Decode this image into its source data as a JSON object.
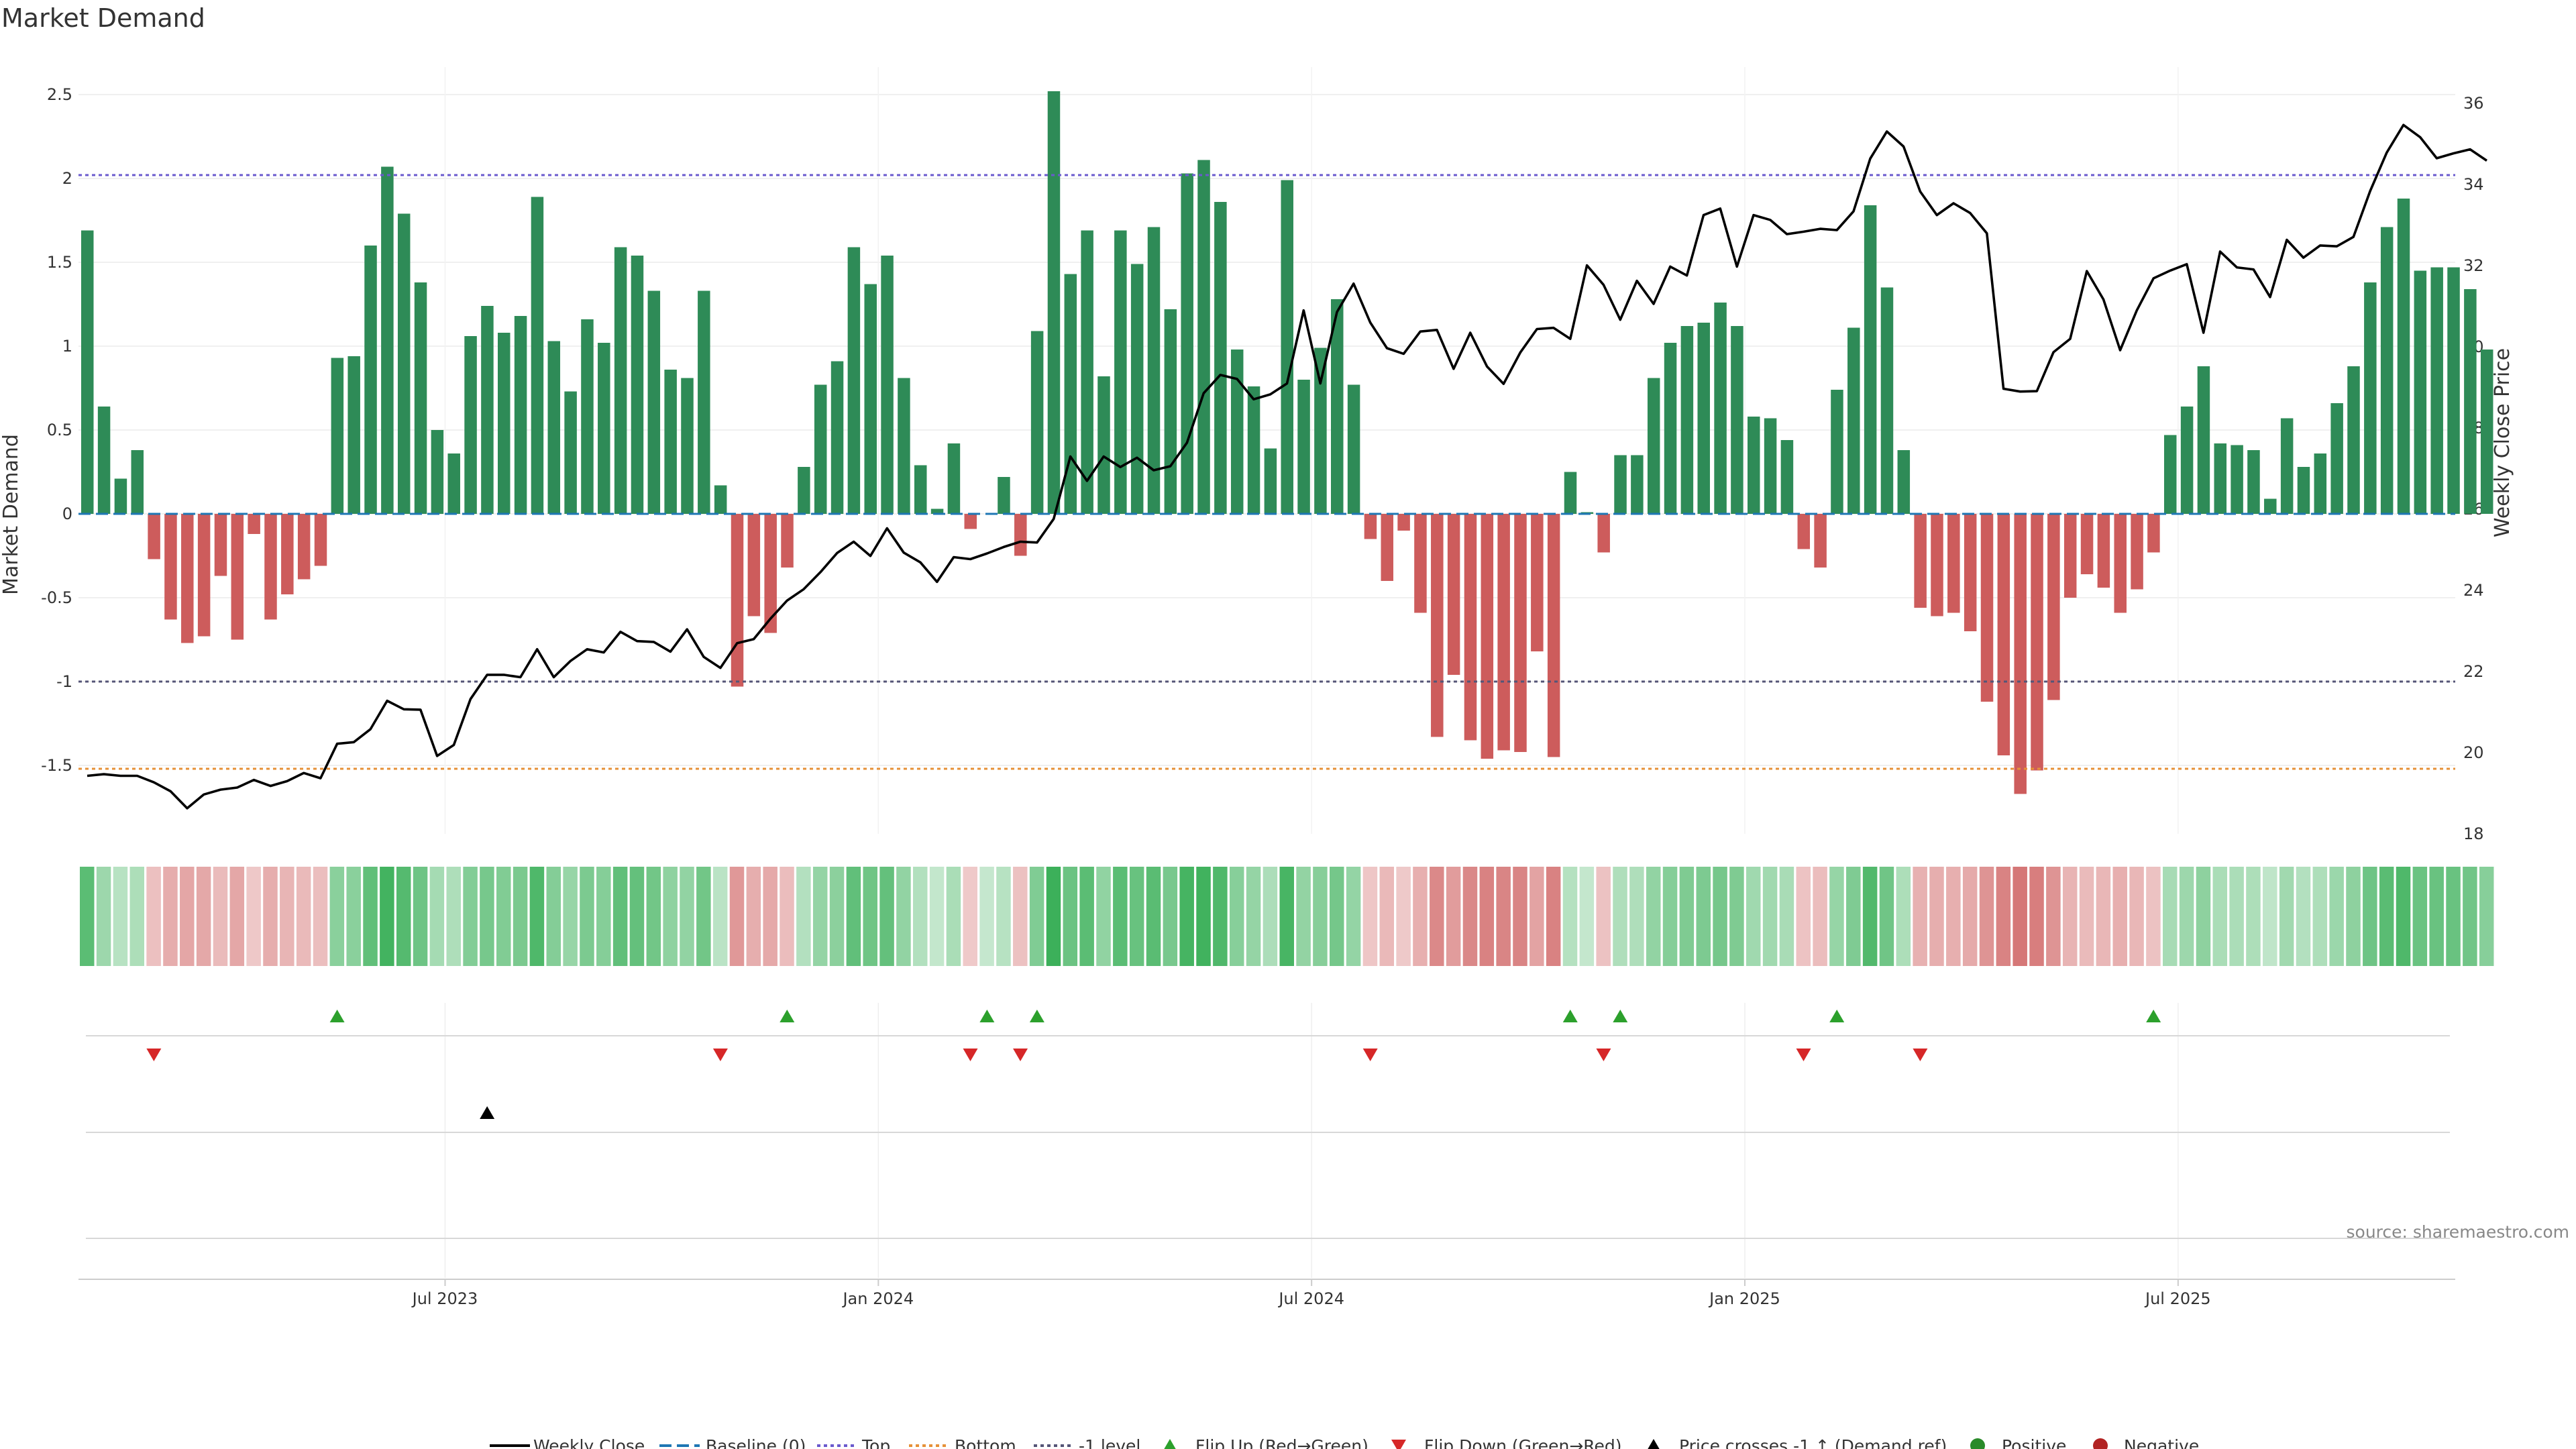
{
  "chart_data": {
    "type": "bar",
    "title": "Market Demand",
    "ylabel": "Market Demand",
    "y2label": "Weekly Close Price",
    "ylim": [
      -1.9,
      2.75
    ],
    "y2lim": [
      18,
      36.5
    ],
    "yticks": [
      "-1.5",
      "-1",
      "-0.5",
      "0",
      "0.5",
      "1",
      "1.5",
      "2",
      "2.5"
    ],
    "ytick_values": [
      -1.5,
      -1,
      -0.5,
      0,
      0.5,
      1,
      1.5,
      2,
      2.5
    ],
    "y2ticks": [
      "18",
      "20",
      "22",
      "24",
      "26",
      "28",
      "30",
      "32",
      "34",
      "36"
    ],
    "y2tick_values": [
      18,
      20,
      22,
      24,
      26,
      28,
      30,
      32,
      34,
      36
    ],
    "x_labels": [
      "Jul 2023",
      "Jan 2024",
      "Jul 2024",
      "Jan 2025",
      "Jul 2025"
    ],
    "x_label_weeks": [
      22,
      48,
      74,
      100,
      126
    ],
    "levels": {
      "baseline": 0,
      "top": 2.02,
      "bottom": -1.52,
      "minus_one": -1
    },
    "colors": {
      "positive": "#2e8b57",
      "negative": "#cd5c5c",
      "price": "#000000",
      "baseline": "#1f77b4",
      "top": "#6a5acd",
      "bottom": "#e69138",
      "minus_one": "#555577",
      "flip_up": "#2ca02c",
      "flip_down": "#d62728",
      "cross": "#000000"
    },
    "demand": [
      1.69,
      0.64,
      0.21,
      0.38,
      -0.27,
      -0.63,
      -0.77,
      -0.73,
      -0.37,
      -0.75,
      -0.12,
      -0.63,
      -0.48,
      -0.39,
      -0.31,
      0.93,
      0.94,
      1.6,
      2.07,
      1.79,
      1.38,
      0.5,
      0.36,
      1.06,
      1.24,
      1.08,
      1.18,
      1.89,
      1.03,
      0.73,
      1.16,
      1.02,
      1.59,
      1.54,
      1.33,
      0.86,
      0.81,
      1.33,
      0.17,
      -1.03,
      -0.61,
      -0.71,
      -0.32,
      0.28,
      0.77,
      0.91,
      1.59,
      1.37,
      1.54,
      0.81,
      0.29,
      0.03,
      0.42,
      -0.09,
      0,
      0.22,
      -0.25,
      1.09,
      2.52,
      1.43,
      1.69,
      0.82,
      1.69,
      1.49,
      1.71,
      1.22,
      2.03,
      2.11,
      1.86,
      0.98,
      0.76,
      0.39,
      1.99,
      0.8,
      0.99,
      1.28,
      0.77,
      -0.15,
      -0.4,
      -0.1,
      -0.59,
      -1.33,
      -0.96,
      -1.35,
      -1.46,
      -1.41,
      -1.42,
      -0.82,
      -1.45,
      0.25,
      0.01,
      -0.23,
      0.35,
      0.35,
      0.81,
      1.02,
      1.12,
      1.14,
      1.26,
      1.12,
      0.58,
      0.57,
      0.44,
      -0.21,
      -0.32,
      0.74,
      1.11,
      1.84,
      1.35,
      0.38,
      -0.56,
      -0.61,
      -0.59,
      -0.7,
      -1.12,
      -1.44,
      -1.67,
      -1.53,
      -1.11,
      -0.5,
      -0.36,
      -0.44,
      -0.59,
      -0.45,
      -0.23,
      0.47,
      0.64,
      0.88,
      0.42,
      0.41,
      0.38,
      0.09,
      0.57,
      0.28,
      0.36,
      0.66,
      0.88,
      1.38,
      1.71,
      1.88,
      1.45,
      1.47,
      1.47,
      1.34,
      0.98
    ],
    "price": [
      19.43,
      19.47,
      19.43,
      19.43,
      19.27,
      19.05,
      18.63,
      18.97,
      19.09,
      19.14,
      19.33,
      19.18,
      19.3,
      19.5,
      19.37,
      20.22,
      20.26,
      20.58,
      21.28,
      21.07,
      21.06,
      19.92,
      20.19,
      21.32,
      21.92,
      21.92,
      21.86,
      22.55,
      21.86,
      22.26,
      22.55,
      22.47,
      22.98,
      22.75,
      22.73,
      22.49,
      23.04,
      22.36,
      22.09,
      22.7,
      22.8,
      23.3,
      23.75,
      24.03,
      24.45,
      24.92,
      25.2,
      24.85,
      25.53,
      24.93,
      24.69,
      24.21,
      24.82,
      24.77,
      24.91,
      25.07,
      25.2,
      25.18,
      25.76,
      27.3,
      26.7,
      27.3,
      27.04,
      27.27,
      26.96,
      27.06,
      27.64,
      28.86,
      29.31,
      29.21,
      28.71,
      28.83,
      29.1,
      30.9,
      29.1,
      30.86,
      31.56,
      30.6,
      29.97,
      29.83,
      30.38,
      30.42,
      29.46,
      30.35,
      29.52,
      29.09,
      29.86,
      30.44,
      30.47,
      30.2,
      32.01,
      31.53,
      30.67,
      31.63,
      31.06,
      31.98,
      31.76,
      33.25,
      33.41,
      31.98,
      33.25,
      33.13,
      32.78,
      32.84,
      32.91,
      32.88,
      33.34,
      34.64,
      35.31,
      34.94,
      33.83,
      33.25,
      33.54,
      33.3,
      32.8,
      28.97,
      28.9,
      28.91,
      29.87,
      30.2,
      31.87,
      31.17,
      29.92,
      30.9,
      31.69,
      31.88,
      32.04,
      30.35,
      32.35,
      31.96,
      31.91,
      31.23,
      32.64,
      32.2,
      32.5,
      32.48,
      32.71,
      33.84,
      34.79,
      35.47,
      35.17,
      34.65,
      34.77,
      34.87,
      34.59
    ],
    "flip_up_weeks": [
      15,
      42,
      54,
      57,
      89,
      92,
      105,
      124
    ],
    "flip_down_weeks": [
      4,
      38,
      53,
      56,
      77,
      91,
      103,
      110
    ],
    "cross_weeks": [
      24
    ],
    "legend": [
      "Weekly Close",
      "Baseline (0)",
      "Top",
      "Bottom",
      "-1 level",
      "Flip Up (Red→Green)",
      "Flip Down (Green→Red)",
      "Price crosses -1 ↑ (Demand ref)",
      "Positive",
      "Negative"
    ],
    "source": "source: sharemaestro.com"
  }
}
